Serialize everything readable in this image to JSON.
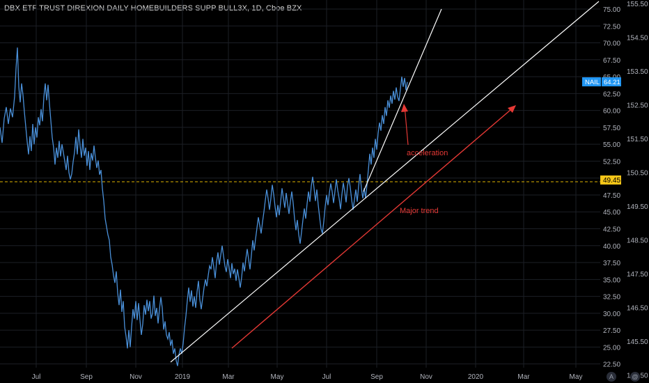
{
  "title": "DBX ETF TRUST DIREXION DAILY HOMEBUILDERS SUPP BULL3X, 1D, Cboe BZX",
  "colors": {
    "background": "#000000",
    "grid": "#1c1f26",
    "price_line": "#4a90d9",
    "trendline": "#ffffff",
    "annotation": "#e53935",
    "last_price_badge": "#2196f3",
    "hline": "#e0b400",
    "hline_badge": "#f5c518"
  },
  "axis_buttons": [
    "A",
    "@"
  ],
  "chart_data": {
    "type": "line",
    "series": [
      {
        "name": "NAIL"
      }
    ],
    "x_labels": [
      "Jul",
      "Sep",
      "Nov",
      "2019",
      "Mar",
      "May",
      "Jul",
      "Sep",
      "Nov",
      "2020",
      "Mar",
      "May"
    ],
    "y_ticks_left": [
      "75.00",
      "72.50",
      "70.00",
      "67.50",
      "65.00",
      "62.50",
      "60.00",
      "57.50",
      "55.00",
      "52.50",
      "50.00",
      "47.50",
      "45.00",
      "42.50",
      "40.00",
      "37.50",
      "35.00",
      "32.50",
      "30.00",
      "27.50",
      "25.00",
      "22.50"
    ],
    "y_ticks_right": [
      "155.50",
      "154.50",
      "153.50",
      "152.50",
      "151.50",
      "150.50",
      "149.50",
      "148.50",
      "147.50",
      "146.50",
      "145.50",
      "144.50"
    ],
    "ylim": [
      21.5,
      77.5
    ],
    "last_price": {
      "label": "NAIL",
      "value": "64.21"
    },
    "hline": {
      "value": 49.45,
      "label": "49.45"
    },
    "annotations": [
      "acceleration",
      "Major trend"
    ],
    "points": [
      [
        0,
        57.5
      ],
      [
        3,
        55.2
      ],
      [
        6,
        58.8
      ],
      [
        9,
        60.5
      ],
      [
        12,
        58.0
      ],
      [
        15,
        60.3
      ],
      [
        18,
        59.0
      ],
      [
        21,
        62.1
      ],
      [
        23,
        66.2
      ],
      [
        25,
        69.3
      ],
      [
        27,
        63.5
      ],
      [
        29,
        61.2
      ],
      [
        31,
        64.0
      ],
      [
        33,
        62.3
      ],
      [
        35,
        59.8
      ],
      [
        37,
        57.6
      ],
      [
        39,
        55.4
      ],
      [
        41,
        53.5
      ],
      [
        43,
        56.2
      ],
      [
        45,
        54.0
      ],
      [
        47,
        58.0
      ],
      [
        49,
        55.0
      ],
      [
        51,
        57.5
      ],
      [
        53,
        56.0
      ],
      [
        55,
        59.0
      ],
      [
        57,
        57.8
      ],
      [
        59,
        60.2
      ],
      [
        61,
        58.4
      ],
      [
        63,
        62.0
      ],
      [
        65,
        64.0
      ],
      [
        67,
        61.5
      ],
      [
        69,
        63.8
      ],
      [
        71,
        61.0
      ],
      [
        73,
        58.5
      ],
      [
        75,
        56.0
      ],
      [
        77,
        54.5
      ],
      [
        79,
        52.0
      ],
      [
        81,
        54.5
      ],
      [
        83,
        53.0
      ],
      [
        85,
        55.5
      ],
      [
        87,
        53.2
      ],
      [
        89,
        55.0
      ],
      [
        91,
        53.8
      ],
      [
        93,
        52.5
      ],
      [
        95,
        51.2
      ],
      [
        97,
        53.3
      ],
      [
        99,
        50.8
      ],
      [
        101,
        49.8
      ],
      [
        103,
        50.6
      ],
      [
        105,
        52.4
      ],
      [
        107,
        53.8
      ],
      [
        109,
        56.1
      ],
      [
        111,
        53.5
      ],
      [
        113,
        57.2
      ],
      [
        115,
        54.8
      ],
      [
        117,
        53.0
      ],
      [
        119,
        55.8
      ],
      [
        121,
        53.3
      ],
      [
        123,
        54.5
      ],
      [
        125,
        51.8
      ],
      [
        127,
        54.0
      ],
      [
        129,
        51.2
      ],
      [
        131,
        53.7
      ],
      [
        133,
        52.6
      ],
      [
        135,
        54.8
      ],
      [
        137,
        53.0
      ],
      [
        139,
        51.5
      ],
      [
        141,
        52.6
      ],
      [
        143,
        50.5
      ],
      [
        145,
        51.2
      ],
      [
        147,
        48.5
      ],
      [
        149,
        46.6
      ],
      [
        151,
        44.0
      ],
      [
        153,
        42.8
      ],
      [
        155,
        41.6
      ],
      [
        157,
        40.8
      ],
      [
        159,
        38.3
      ],
      [
        161,
        37.2
      ],
      [
        163,
        35.6
      ],
      [
        165,
        34.5
      ],
      [
        167,
        36.2
      ],
      [
        169,
        33.0
      ],
      [
        171,
        31.2
      ],
      [
        173,
        33.5
      ],
      [
        175,
        30.2
      ],
      [
        177,
        31.8
      ],
      [
        179,
        28.0
      ],
      [
        181,
        26.6
      ],
      [
        183,
        24.8
      ],
      [
        185,
        27.5
      ],
      [
        187,
        25.0
      ],
      [
        189,
        28.0
      ],
      [
        191,
        30.6
      ],
      [
        193,
        29.2
      ],
      [
        195,
        31.8
      ],
      [
        197,
        29.0
      ],
      [
        199,
        31.5
      ],
      [
        201,
        29.0
      ],
      [
        203,
        26.8
      ],
      [
        205,
        28.4
      ],
      [
        207,
        31.2
      ],
      [
        209,
        29.8
      ],
      [
        211,
        32.0
      ],
      [
        213,
        30.3
      ],
      [
        215,
        31.8
      ],
      [
        217,
        29.2
      ],
      [
        219,
        30.0
      ],
      [
        221,
        32.6
      ],
      [
        223,
        29.6
      ],
      [
        225,
        30.8
      ],
      [
        227,
        28.5
      ],
      [
        229,
        30.6
      ],
      [
        231,
        32.4
      ],
      [
        233,
        30.8
      ],
      [
        235,
        27.6
      ],
      [
        237,
        28.8
      ],
      [
        239,
        26.8
      ],
      [
        241,
        26.2
      ],
      [
        243,
        27.2
      ],
      [
        245,
        25.2
      ],
      [
        247,
        26.1
      ],
      [
        249,
        24.0
      ],
      [
        251,
        24.8
      ],
      [
        253,
        23.0
      ],
      [
        255,
        22.2
      ],
      [
        257,
        23.9
      ],
      [
        259,
        24.8
      ],
      [
        261,
        24.0
      ],
      [
        263,
        25.5
      ],
      [
        265,
        27.8
      ],
      [
        267,
        29.6
      ],
      [
        269,
        31.9
      ],
      [
        271,
        33.8
      ],
      [
        273,
        31.7
      ],
      [
        275,
        33.4
      ],
      [
        277,
        31.0
      ],
      [
        279,
        32.5
      ],
      [
        281,
        30.8
      ],
      [
        283,
        33.2
      ],
      [
        285,
        34.8
      ],
      [
        287,
        32.0
      ],
      [
        289,
        30.6
      ],
      [
        291,
        32.2
      ],
      [
        293,
        33.8
      ],
      [
        295,
        35.0
      ],
      [
        297,
        34.0
      ],
      [
        299,
        35.6
      ],
      [
        301,
        37.0
      ],
      [
        303,
        36.5
      ],
      [
        305,
        38.3
      ],
      [
        307,
        36.8
      ],
      [
        309,
        35.2
      ],
      [
        311,
        37.6
      ],
      [
        313,
        39.0
      ],
      [
        315,
        37.2
      ],
      [
        317,
        38.6
      ],
      [
        319,
        40.0
      ],
      [
        321,
        38.5
      ],
      [
        323,
        37.0
      ],
      [
        325,
        36.1
      ],
      [
        327,
        38.0
      ],
      [
        329,
        36.8
      ],
      [
        331,
        35.2
      ],
      [
        333,
        37.4
      ],
      [
        335,
        35.8
      ],
      [
        337,
        36.6
      ],
      [
        339,
        34.8
      ],
      [
        341,
        36.5
      ],
      [
        343,
        35.2
      ],
      [
        345,
        33.8
      ],
      [
        347,
        35.3
      ],
      [
        349,
        37.5
      ],
      [
        351,
        36.2
      ],
      [
        353,
        38.0
      ],
      [
        355,
        39.5
      ],
      [
        357,
        38.0
      ],
      [
        359,
        36.5
      ],
      [
        361,
        38.6
      ],
      [
        363,
        40.8
      ],
      [
        365,
        39.3
      ],
      [
        367,
        41.0
      ],
      [
        369,
        42.6
      ],
      [
        371,
        44.2
      ],
      [
        373,
        43.0
      ],
      [
        375,
        41.8
      ],
      [
        377,
        43.5
      ],
      [
        379,
        45.0
      ],
      [
        381,
        46.7
      ],
      [
        383,
        48.3
      ],
      [
        385,
        47.0
      ],
      [
        387,
        45.3
      ],
      [
        389,
        47.0
      ],
      [
        391,
        49.0
      ],
      [
        393,
        47.6
      ],
      [
        395,
        45.8
      ],
      [
        397,
        44.2
      ],
      [
        399,
        46.0
      ],
      [
        401,
        44.5
      ],
      [
        403,
        46.5
      ],
      [
        405,
        48.5
      ],
      [
        407,
        47.0
      ],
      [
        409,
        45.6
      ],
      [
        411,
        47.8
      ],
      [
        413,
        46.2
      ],
      [
        415,
        44.7
      ],
      [
        417,
        46.5
      ],
      [
        419,
        48.0
      ],
      [
        421,
        46.3
      ],
      [
        423,
        44.0
      ],
      [
        425,
        42.3
      ],
      [
        427,
        43.8
      ],
      [
        429,
        41.6
      ],
      [
        431,
        40.3
      ],
      [
        433,
        42.0
      ],
      [
        435,
        43.8
      ],
      [
        437,
        45.5
      ],
      [
        439,
        44.0
      ],
      [
        441,
        46.2
      ],
      [
        443,
        48.0
      ],
      [
        445,
        46.5
      ],
      [
        447,
        48.8
      ],
      [
        449,
        50.2
      ],
      [
        451,
        48.5
      ],
      [
        453,
        46.6
      ],
      [
        455,
        48.3
      ],
      [
        457,
        46.0
      ],
      [
        459,
        44.2
      ],
      [
        461,
        42.5
      ],
      [
        463,
        41.8
      ],
      [
        465,
        43.6
      ],
      [
        467,
        45.8
      ],
      [
        469,
        47.5
      ],
      [
        471,
        46.0
      ],
      [
        473,
        47.8
      ],
      [
        475,
        49.2
      ],
      [
        477,
        48.0
      ],
      [
        479,
        46.3
      ],
      [
        481,
        48.0
      ],
      [
        483,
        49.8
      ],
      [
        485,
        48.2
      ],
      [
        487,
        47.0
      ],
      [
        489,
        45.4
      ],
      [
        491,
        47.6
      ],
      [
        493,
        49.3
      ],
      [
        495,
        48.0
      ],
      [
        497,
        46.4
      ],
      [
        499,
        48.8
      ],
      [
        501,
        50.0
      ],
      [
        503,
        48.6
      ],
      [
        505,
        46.8
      ],
      [
        507,
        45.3
      ],
      [
        509,
        46.8
      ],
      [
        511,
        48.3
      ],
      [
        513,
        46.5
      ],
      [
        515,
        48.8
      ],
      [
        517,
        50.6
      ],
      [
        519,
        48.5
      ],
      [
        521,
        47.0
      ],
      [
        523,
        48.5
      ],
      [
        525,
        47.0
      ],
      [
        527,
        49.0
      ],
      [
        529,
        51.2
      ],
      [
        531,
        53.6
      ],
      [
        533,
        52.0
      ],
      [
        535,
        54.5
      ],
      [
        537,
        53.0
      ],
      [
        539,
        55.8
      ],
      [
        541,
        54.2
      ],
      [
        543,
        56.6
      ],
      [
        545,
        58.2
      ],
      [
        547,
        57.0
      ],
      [
        549,
        59.3
      ],
      [
        551,
        58.0
      ],
      [
        553,
        60.5
      ],
      [
        555,
        59.2
      ],
      [
        557,
        61.5
      ],
      [
        559,
        60.4
      ],
      [
        561,
        62.2
      ],
      [
        563,
        61.0
      ],
      [
        565,
        62.9
      ],
      [
        567,
        61.6
      ],
      [
        569,
        63.4
      ],
      [
        571,
        62.0
      ],
      [
        573,
        61.4
      ],
      [
        575,
        63.2
      ],
      [
        577,
        65.0
      ],
      [
        579,
        63.5
      ],
      [
        581,
        64.8
      ],
      [
        583,
        63.0
      ],
      [
        585,
        64.21
      ]
    ]
  }
}
